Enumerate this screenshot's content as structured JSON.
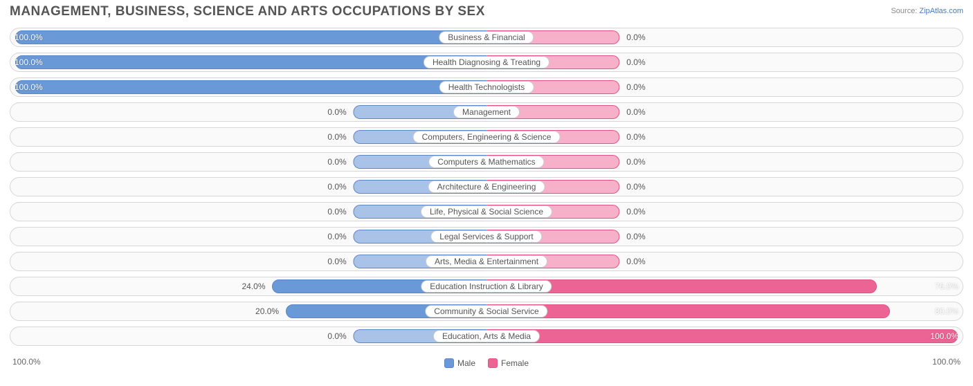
{
  "title": "MANAGEMENT, BUSINESS, SCIENCE AND ARTS OCCUPATIONS BY SEX",
  "source_prefix": "Source: ",
  "source_link": "ZipAtlas.com",
  "axis": {
    "left": "100.0%",
    "right": "100.0%"
  },
  "colors": {
    "male_fill_strong": "#6a99d8",
    "male_fill_light": "#a9c3e8",
    "male_border": "#5a86c4",
    "female_fill_strong": "#ec6493",
    "female_fill_light": "#f6b0c8",
    "female_border": "#e05388",
    "row_border": "#d6d6d6",
    "row_bg": "#fafafa",
    "text": "#555555",
    "label_bg": "#ffffff",
    "label_border": "#cccccc"
  },
  "legend": {
    "male": "Male",
    "female": "Female"
  },
  "chart": {
    "type": "diverging-bar",
    "center_bar_width_pct": 28,
    "rows": [
      {
        "category": "Business & Financial",
        "male": 100.0,
        "female": 0.0,
        "male_label": "100.0%",
        "female_label": "0.0%"
      },
      {
        "category": "Health Diagnosing & Treating",
        "male": 100.0,
        "female": 0.0,
        "male_label": "100.0%",
        "female_label": "0.0%"
      },
      {
        "category": "Health Technologists",
        "male": 100.0,
        "female": 0.0,
        "male_label": "100.0%",
        "female_label": "0.0%"
      },
      {
        "category": "Management",
        "male": 0.0,
        "female": 0.0,
        "male_label": "0.0%",
        "female_label": "0.0%"
      },
      {
        "category": "Computers, Engineering & Science",
        "male": 0.0,
        "female": 0.0,
        "male_label": "0.0%",
        "female_label": "0.0%"
      },
      {
        "category": "Computers & Mathematics",
        "male": 0.0,
        "female": 0.0,
        "male_label": "0.0%",
        "female_label": "0.0%"
      },
      {
        "category": "Architecture & Engineering",
        "male": 0.0,
        "female": 0.0,
        "male_label": "0.0%",
        "female_label": "0.0%"
      },
      {
        "category": "Life, Physical & Social Science",
        "male": 0.0,
        "female": 0.0,
        "male_label": "0.0%",
        "female_label": "0.0%"
      },
      {
        "category": "Legal Services & Support",
        "male": 0.0,
        "female": 0.0,
        "male_label": "0.0%",
        "female_label": "0.0%"
      },
      {
        "category": "Arts, Media & Entertainment",
        "male": 0.0,
        "female": 0.0,
        "male_label": "0.0%",
        "female_label": "0.0%"
      },
      {
        "category": "Education Instruction & Library",
        "male": 24.0,
        "female": 76.0,
        "male_label": "24.0%",
        "female_label": "76.0%"
      },
      {
        "category": "Community & Social Service",
        "male": 20.0,
        "female": 80.0,
        "male_label": "20.0%",
        "female_label": "80.0%"
      },
      {
        "category": "Education, Arts & Media",
        "male": 0.0,
        "female": 100.0,
        "male_label": "0.0%",
        "female_label": "100.0%"
      }
    ]
  }
}
